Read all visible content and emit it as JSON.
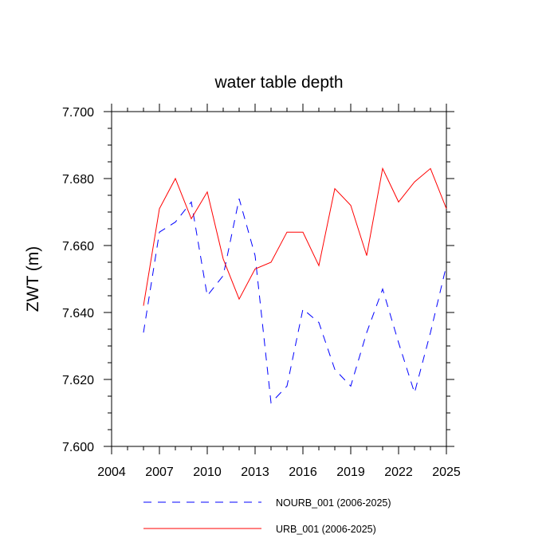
{
  "chart_data": {
    "type": "line",
    "title": "water table depth",
    "xlabel": "",
    "ylabel": "ZWT  (m)",
    "xlim": [
      2004,
      2025
    ],
    "ylim": [
      7.6,
      7.7
    ],
    "x_ticks": [
      2004,
      2007,
      2010,
      2013,
      2016,
      2019,
      2022,
      2025
    ],
    "x_tick_labels": [
      "2004",
      "2007",
      "2010",
      "2013",
      "2016",
      "2019",
      "2022",
      "2025"
    ],
    "y_ticks": [
      7.6,
      7.62,
      7.64,
      7.66,
      7.68,
      7.7
    ],
    "y_tick_labels": [
      "7.600",
      "7.620",
      "7.640",
      "7.660",
      "7.680",
      "7.700"
    ],
    "grid": false,
    "legend_position": "bottom",
    "x": [
      2006,
      2007,
      2008,
      2009,
      2010,
      2011,
      2012,
      2013,
      2014,
      2015,
      2016,
      2017,
      2018,
      2019,
      2020,
      2021,
      2022,
      2023,
      2024,
      2025
    ],
    "series": [
      {
        "name": "NOURB_001 (2006-2025)",
        "color": "#0000ff",
        "dash": "dashed",
        "values": [
          7.634,
          7.664,
          7.667,
          7.673,
          7.645,
          7.651,
          7.674,
          7.657,
          7.613,
          7.618,
          7.641,
          7.637,
          7.623,
          7.618,
          7.634,
          7.647,
          7.631,
          7.616,
          7.634,
          7.654
        ]
      },
      {
        "name": "URB_001 (2006-2025)",
        "color": "#ff0000",
        "dash": "solid",
        "values": [
          7.642,
          7.671,
          7.68,
          7.668,
          7.676,
          7.656,
          7.644,
          7.653,
          7.655,
          7.664,
          7.664,
          7.654,
          7.677,
          7.672,
          7.657,
          7.683,
          7.673,
          7.679,
          7.683,
          7.671
        ]
      }
    ]
  }
}
